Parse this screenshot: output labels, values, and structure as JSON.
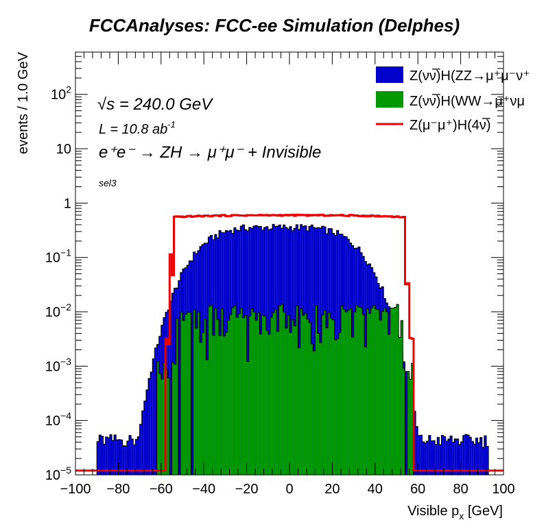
{
  "chart_data": {
    "type": "histogram",
    "title": "FCCAnalyses: FCC-ee Simulation (Delphes)",
    "xlabel": "Visible p",
    "xlabel_sub": "x",
    "xlabel_unit": "[GeV]",
    "ylabel": "events / 1.0 GeV",
    "xlim": [
      -100,
      100
    ],
    "ylim": [
      1e-05,
      600
    ],
    "yscale": "log",
    "x_ticks": [
      "−100",
      "−80",
      "−60",
      "−40",
      "−20",
      "0",
      "20",
      "40",
      "60",
      "80",
      "100"
    ],
    "y_ticks": [
      {
        "base": "10",
        "exp": "−5"
      },
      {
        "base": "10",
        "exp": "−4"
      },
      {
        "base": "10",
        "exp": "−3"
      },
      {
        "base": "10",
        "exp": "−2"
      },
      {
        "base": "10",
        "exp": "−1"
      },
      {
        "base": "1",
        "exp": ""
      },
      {
        "base": "10",
        "exp": ""
      },
      {
        "base": "10",
        "exp": "2"
      }
    ],
    "annotations": {
      "sqrts_sym": "√",
      "sqrts_text": "s = 240.0 GeV",
      "lumi": "L = 10.8 ab",
      "lumi_exp": "-1",
      "process": "e⁺e⁻ → ZH → μ⁺μ⁻ + Invisible",
      "selection": "sel3"
    },
    "bin_width": 1,
    "series": [
      {
        "name": "Z(νν̅)H(ZZ→μ⁺μ⁻ν⁺",
        "style": "filled",
        "color": "#0000cc",
        "shape": {
          "plateau": 0.36,
          "center": -5,
          "sigma": 38,
          "power": 4,
          "x_min": -90,
          "x_max": 93,
          "min_level": 4e-05
        }
      },
      {
        "name": "Z(νν̅)H(WW→μ⁺νμ",
        "style": "filled",
        "color": "#009900",
        "shape": {
          "plateau": 0.011,
          "x_min": -63,
          "x_max": 58,
          "edge": 53,
          "level_outside": 0.0009
        }
      },
      {
        "name": "Z(μ⁻μ⁺)H(4ν̅)",
        "style": "line",
        "color": "#ee0000",
        "shape": {
          "plateau": 0.6,
          "left_edge": -56,
          "right_edge": 56,
          "floor": 1.2e-05
        }
      }
    ]
  }
}
